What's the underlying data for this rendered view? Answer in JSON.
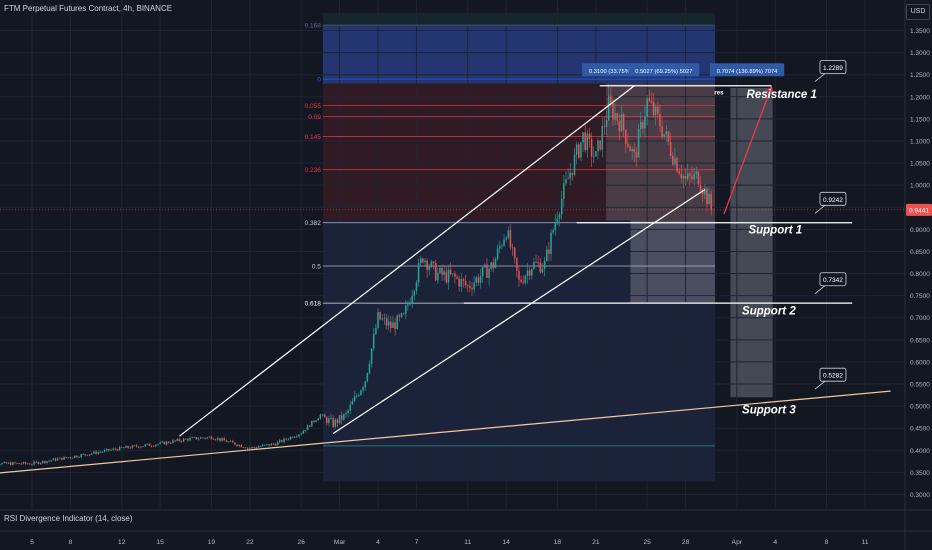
{
  "header": {
    "title": "FTM Perpetual Futures Contract, 4h, BINANCE",
    "currency": "USD"
  },
  "indicator": {
    "label": "RSI Divergence Indicator (14, close)"
  },
  "chart_data": {
    "type": "candlestick",
    "y_ticks": [
      "1.3500",
      "1.3000",
      "1.2500",
      "1.2000",
      "1.1500",
      "1.1000",
      "1.0500",
      "1.0000",
      "0.9500",
      "0.9000",
      "0.8500",
      "0.8000",
      "0.7500",
      "0.7000",
      "0.6500",
      "0.6000",
      "0.5500",
      "0.5000",
      "0.4500",
      "0.4000",
      "0.3500",
      "0.3000"
    ],
    "ylim": [
      0.27,
      1.39
    ],
    "x_ticks": [
      "5",
      "8",
      "12",
      "15",
      "19",
      "22",
      "26",
      "Mar",
      "4",
      "7",
      "11",
      "14",
      "18",
      "21",
      "25",
      "28",
      "Apr",
      "4",
      "8",
      "11"
    ],
    "x_tick_days": [
      5,
      8,
      12,
      15,
      19,
      22,
      26,
      29,
      32,
      35,
      39,
      42,
      46,
      49,
      53,
      56,
      60,
      63,
      67,
      70
    ],
    "x_day_range": [
      1,
      72
    ],
    "last_price": {
      "label": "0.9441",
      "value": 0.9441
    },
    "price_path": [
      [
        1,
        0.37
      ],
      [
        5,
        0.37
      ],
      [
        8,
        0.385
      ],
      [
        12,
        0.405
      ],
      [
        15,
        0.415
      ],
      [
        17,
        0.425
      ],
      [
        19,
        0.43
      ],
      [
        22,
        0.405
      ],
      [
        24,
        0.415
      ],
      [
        26,
        0.44
      ],
      [
        27.5,
        0.48
      ],
      [
        28.5,
        0.46
      ],
      [
        29.5,
        0.48
      ],
      [
        31,
        0.56
      ],
      [
        32,
        0.7
      ],
      [
        33,
        0.68
      ],
      [
        34,
        0.7
      ],
      [
        35.5,
        0.84
      ],
      [
        36.5,
        0.8
      ],
      [
        38,
        0.79
      ],
      [
        39,
        0.77
      ],
      [
        41,
        0.82
      ],
      [
        42,
        0.9
      ],
      [
        43,
        0.78
      ],
      [
        44,
        0.82
      ],
      [
        45,
        0.82
      ],
      [
        46,
        0.94
      ],
      [
        47,
        1.03
      ],
      [
        48,
        1.11
      ],
      [
        49,
        1.06
      ],
      [
        50,
        1.18
      ],
      [
        51,
        1.14
      ],
      [
        52,
        1.06
      ],
      [
        53,
        1.19
      ],
      [
        54,
        1.14
      ],
      [
        55,
        1.07
      ],
      [
        56,
        1.01
      ],
      [
        57,
        1.02
      ],
      [
        58,
        0.95
      ]
    ],
    "fib_levels": [
      {
        "label": "0.168",
        "value": 1.362,
        "color": "#5d6a8a"
      },
      {
        "label": "0",
        "value": 1.24,
        "color": "#2962ff"
      },
      {
        "label": "0.055",
        "value": 1.18,
        "color": "#f23645"
      },
      {
        "label": "0.09",
        "value": 1.155,
        "color": "#f23645"
      },
      {
        "label": "0.145",
        "value": 1.11,
        "color": "#f23645"
      },
      {
        "label": "0.236",
        "value": 1.035,
        "color": "#f23645"
      },
      {
        "label": "0.382",
        "value": 0.915,
        "color": "#ced1d9"
      },
      {
        "label": "0.5",
        "value": 0.817,
        "color": "#ced1d9"
      },
      {
        "label": "0.618",
        "value": 0.733,
        "color": "#ffffff"
      }
    ],
    "fib_day_range": [
      27.7,
      58.3
    ],
    "fib_bottom": 0.41,
    "zones": [
      {
        "day_from": 27.7,
        "day_to": 58.3,
        "from": 1.23,
        "to": 1.39,
        "color": "#26a69a",
        "opacity": 0.1
      },
      {
        "day_from": 27.7,
        "day_to": 58.3,
        "from": 1.23,
        "to": 1.36,
        "color": "#3a4fd6",
        "opacity": 0.4
      },
      {
        "day_from": 27.7,
        "day_to": 58.3,
        "from": 0.92,
        "to": 1.23,
        "color": "#d8343f",
        "opacity": 0.15
      },
      {
        "day_from": 27.7,
        "day_to": 58.3,
        "from": 0.33,
        "to": 0.92,
        "color": "#2a3a66",
        "opacity": 0.35
      },
      {
        "day_from": 49.8,
        "day_to": 58.3,
        "from": 0.92,
        "to": 1.23,
        "color": "#787b86",
        "opacity": 0.35
      },
      {
        "day_from": 51.7,
        "day_to": 58.3,
        "from": 0.733,
        "to": 0.92,
        "color": "#787b86",
        "opacity": 0.5
      },
      {
        "day_from": 59.5,
        "day_to": 62.8,
        "from": 0.52,
        "to": 1.22,
        "color": "#787b86",
        "opacity": 0.5
      }
    ],
    "channel_lines": [
      {
        "from": [
          16.5,
          0.432
        ],
        "to": [
          52.0,
          1.225
        ]
      },
      {
        "from": [
          28.5,
          0.438
        ],
        "to": [
          57.5,
          0.99
        ]
      },
      {
        "from": [
          1.0,
          0.345
        ],
        "to": [
          72.0,
          0.534
        ],
        "color": "#f5c7a0"
      }
    ],
    "levels": [
      {
        "label": "Support 1",
        "price": 0.915,
        "day_from": 47.5,
        "day_to": 69.0,
        "badge": "0.9242",
        "badge_day": 67.5,
        "badge_price": 0.968,
        "label_day": 63.0,
        "label_price": 0.9
      },
      {
        "label": "Support 2",
        "price": 0.733,
        "day_from": 38.7,
        "day_to": 69.0,
        "badge": "0.7342",
        "badge_day": 67.5,
        "badge_price": 0.786,
        "label_day": 62.5,
        "label_price": 0.716
      },
      {
        "label": "Support 3",
        "price": null,
        "day_from": null,
        "day_to": null,
        "badge": "0.5282",
        "badge_day": 67.5,
        "badge_price": 0.57,
        "label_day": 62.5,
        "label_price": 0.492
      },
      {
        "label": "Resistance 1",
        "price": 1.225,
        "day_from": 49.3,
        "day_to": 62.7,
        "badge": "1.2289",
        "badge_day": 67.5,
        "badge_price": 1.266,
        "label_day": 63.5,
        "label_price": 1.206
      }
    ],
    "arrow": {
      "from": [
        59.0,
        0.935
      ],
      "to": [
        62.7,
        1.222
      ],
      "color": "#f23645"
    },
    "measure_labels": [
      {
        "text": "0.3100 (33.75%) 3100",
        "day": 50.7,
        "price": 1.26
      },
      {
        "text": "0.5027 (69.25%) 5027",
        "day": 54.3,
        "price": 1.26
      },
      {
        "text": "0.7074 (136.89%) 7074",
        "day": 60.8,
        "price": 1.26
      }
    ],
    "res_text": {
      "text": "res",
      "day": 58.6,
      "price": 1.205
    }
  }
}
